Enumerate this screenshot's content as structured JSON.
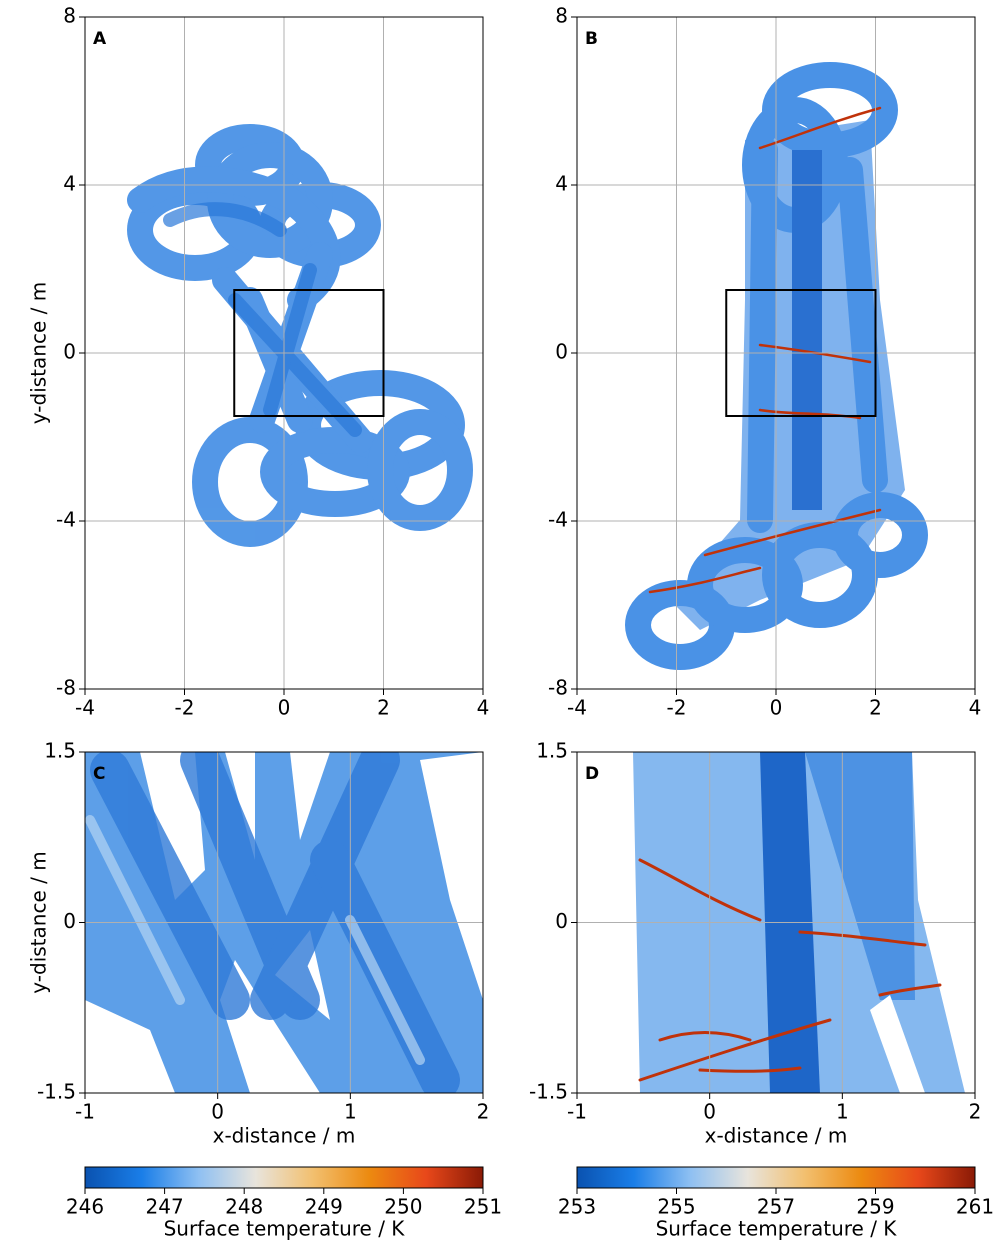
{
  "chart_data": [
    {
      "type": "map",
      "panel": "A",
      "xlim": [
        -4,
        4
      ],
      "ylim": [
        -8,
        8
      ],
      "xticks": [
        -4,
        -2,
        0,
        2,
        4
      ],
      "yticks": [
        -8,
        -4,
        0,
        4,
        8
      ],
      "ylabel": "y-distance / m",
      "grid": true,
      "inset": {
        "xlim": [
          -1,
          2
        ],
        "ylim": [
          -1.5,
          1.5
        ]
      }
    },
    {
      "type": "map",
      "panel": "B",
      "xlim": [
        -4,
        4
      ],
      "ylim": [
        -8,
        8
      ],
      "xticks": [
        -4,
        -2,
        0,
        2,
        4
      ],
      "yticks": [
        -8,
        -4,
        0,
        4,
        8
      ],
      "grid": true,
      "inset": {
        "xlim": [
          -1,
          2
        ],
        "ylim": [
          -1.5,
          1.5
        ]
      }
    },
    {
      "type": "map",
      "panel": "C",
      "xlim": [
        -1,
        2
      ],
      "ylim": [
        -1.5,
        1.5
      ],
      "xticks": [
        -1,
        0,
        1,
        2
      ],
      "yticks": [
        -1.5,
        0,
        1.5
      ],
      "xlabel": "x-distance / m",
      "ylabel": "y-distance / m",
      "grid": true
    },
    {
      "type": "map",
      "panel": "D",
      "xlim": [
        -1,
        2
      ],
      "ylim": [
        -1.5,
        1.5
      ],
      "xticks": [
        -1,
        0,
        1,
        2
      ],
      "yticks": [
        -1.5,
        0,
        1.5
      ],
      "xlabel": "x-distance / m",
      "grid": true
    },
    {
      "type": "colorbar",
      "xlim": [
        246,
        251
      ],
      "xticks": [
        246,
        247,
        248,
        249,
        250,
        251
      ],
      "label": "Surface temperature / K",
      "colors": [
        "#0a52b0",
        "#1a7ee8",
        "#8fc0f2",
        "#e8e4dc",
        "#f2c070",
        "#ec8a10",
        "#e8481a",
        "#8a1a06"
      ]
    },
    {
      "type": "colorbar",
      "xlim": [
        253,
        261
      ],
      "xticks": [
        253,
        255,
        257,
        259,
        261
      ],
      "label": "Surface temperature / K",
      "colors": [
        "#0a52b0",
        "#1a7ee8",
        "#8fc0f2",
        "#e8e4dc",
        "#f2c070",
        "#ec8a10",
        "#e8481a",
        "#8a1a06"
      ]
    }
  ]
}
